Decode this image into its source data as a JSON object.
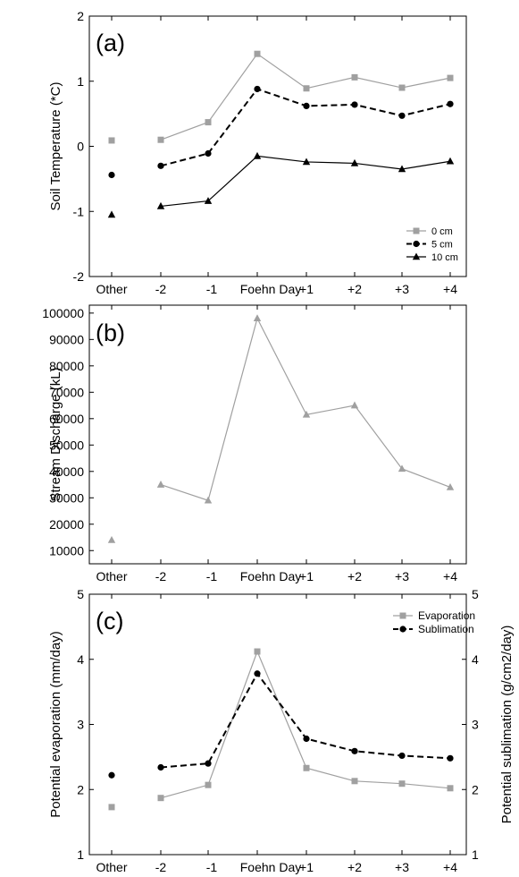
{
  "chart_data": [
    {
      "type": "line",
      "panel_label": "(a)",
      "ylabel": "Soil Temperature (*C)",
      "ylim": [
        -2,
        2
      ],
      "yticks": [
        -2,
        -1,
        0,
        1,
        2
      ],
      "categories": [
        "Other",
        "-2",
        "-1",
        "Foehn Day",
        "+1",
        "+2",
        "+3",
        "+4"
      ],
      "connect_from_index": 1,
      "legend_position": "bottom-right",
      "series": [
        {
          "name": "0 cm",
          "marker": "square",
          "color": "#a0a0a0",
          "line": "solid",
          "values": [
            0.09,
            0.1,
            0.37,
            1.42,
            0.89,
            1.06,
            0.9,
            1.05
          ]
        },
        {
          "name": "5 cm",
          "marker": "circle",
          "color": "#000000",
          "line": "dashed",
          "values": [
            -0.44,
            -0.3,
            -0.11,
            0.88,
            0.62,
            0.64,
            0.47,
            0.65
          ]
        },
        {
          "name": "10 cm",
          "marker": "triangle",
          "color": "#000000",
          "line": "solid",
          "values": [
            -1.05,
            -0.92,
            -0.84,
            -0.15,
            -0.24,
            -0.26,
            -0.35,
            -0.23
          ]
        }
      ]
    },
    {
      "type": "line",
      "panel_label": "(b)",
      "ylabel": "Stream Discharge (kL)",
      "ylim": [
        5000,
        103000
      ],
      "yticks": [
        10000,
        20000,
        30000,
        40000,
        50000,
        60000,
        70000,
        80000,
        90000,
        100000
      ],
      "categories": [
        "Other",
        "-2",
        "-1",
        "Foehn Day",
        "+1",
        "+2",
        "+3",
        "+4"
      ],
      "connect_from_index": 1,
      "series": [
        {
          "marker": "triangle",
          "color": "#a0a0a0",
          "line": "solid",
          "values": [
            14000,
            35000,
            29000,
            98000,
            61500,
            65000,
            41000,
            34000
          ]
        }
      ]
    },
    {
      "type": "line",
      "panel_label": "(c)",
      "ylabel": "Potential evaporation (mm/day)",
      "ylabel_right": "Potential sublimation (g/cm2/day)",
      "ylim": [
        1,
        5
      ],
      "yticks": [
        1,
        2,
        3,
        4,
        5
      ],
      "ylim_right": [
        1,
        5
      ],
      "yticks_right": [
        1,
        2,
        3,
        4,
        5
      ],
      "categories": [
        "Other",
        "-2",
        "-1",
        "Foehn Day",
        "+1",
        "+2",
        "+3",
        "+4"
      ],
      "connect_from_index": 1,
      "legend_position": "top-right",
      "series": [
        {
          "name": "Evaporation",
          "marker": "square",
          "color": "#a0a0a0",
          "line": "solid",
          "values": [
            1.73,
            1.87,
            2.07,
            4.12,
            2.33,
            2.13,
            2.09,
            2.02
          ]
        },
        {
          "name": "Sublimation",
          "marker": "circle",
          "color": "#000000",
          "line": "dashed",
          "values": [
            2.22,
            2.34,
            2.4,
            3.78,
            2.78,
            2.59,
            2.52,
            2.48
          ]
        }
      ]
    }
  ]
}
